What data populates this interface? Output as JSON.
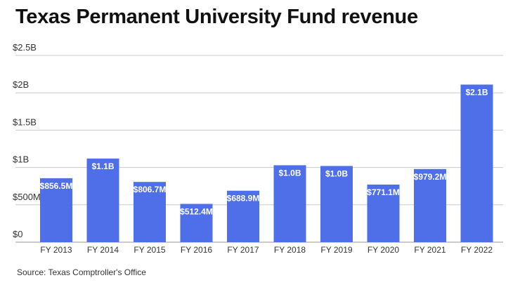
{
  "chart_data": {
    "type": "bar",
    "title": "Texas Permanent University Fund revenue",
    "source": "Source: Texas Comptroller's Office",
    "xlabel": "",
    "ylabel": "",
    "ylim": [
      0,
      2.5
    ],
    "unit": "billions USD",
    "yticks": [
      0,
      0.5,
      1,
      1.5,
      2,
      2.5
    ],
    "ytick_labels": [
      "$0",
      "$500M",
      "$1B",
      "$1.5B",
      "$2B",
      "$2.5B"
    ],
    "grid": true,
    "categories": [
      "FY 2013",
      "FY 2014",
      "FY 2015",
      "FY 2016",
      "FY 2017",
      "FY 2018",
      "FY 2019",
      "FY 2020",
      "FY 2021",
      "FY 2022"
    ],
    "values": [
      0.8565,
      1.12,
      0.8067,
      0.5124,
      0.6889,
      1.03,
      1.02,
      0.7711,
      0.9792,
      2.11
    ],
    "data_labels": [
      "$856.5M",
      "$1.1B",
      "$806.7M",
      "$512.4M",
      "$688.9M",
      "$1.0B",
      "$1.0B",
      "$771.1M",
      "$979.2M",
      "$2.1B"
    ],
    "bar_color": "#4f6fe8",
    "grid_color": "#c8c8c8"
  }
}
